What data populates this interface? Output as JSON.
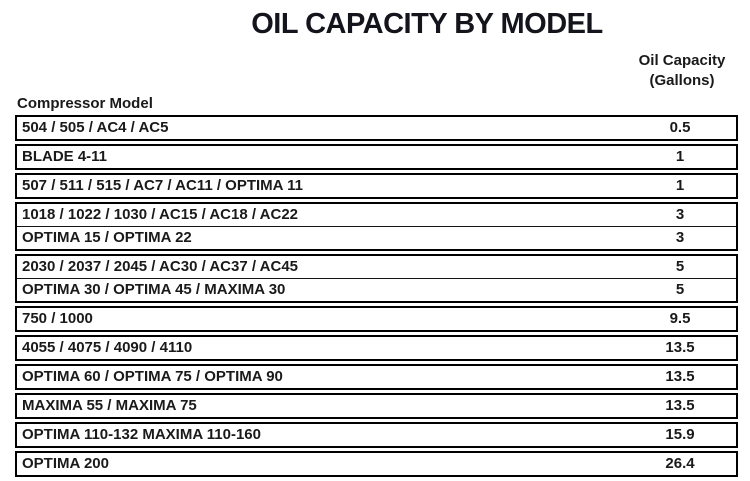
{
  "title": "OIL CAPACITY BY MODEL",
  "table": {
    "model_header": "Compressor Model",
    "capacity_header_line1": "Oil Capacity",
    "capacity_header_line2": "(Gallons)",
    "groups": [
      {
        "rows": [
          {
            "model": "504 / 505 / AC4 / AC5",
            "capacity": "0.5"
          }
        ]
      },
      {
        "rows": [
          {
            "model": "BLADE 4-11",
            "capacity": "1"
          }
        ]
      },
      {
        "rows": [
          {
            "model": "507 / 511 / 515 / AC7 / AC11 / OPTIMA 11",
            "capacity": "1"
          }
        ]
      },
      {
        "rows": [
          {
            "model": "1018 / 1022 / 1030 / AC15 / AC18 / AC22",
            "capacity": "3"
          },
          {
            "model": "OPTIMA 15 / OPTIMA 22",
            "capacity": "3"
          }
        ]
      },
      {
        "rows": [
          {
            "model": "2030 / 2037 / 2045 / AC30 / AC37 / AC45",
            "capacity": "5"
          },
          {
            "model": "OPTIMA 30 / OPTIMA 45 / MAXIMA 30",
            "capacity": "5"
          }
        ]
      },
      {
        "rows": [
          {
            "model": "750 / 1000",
            "capacity": "9.5"
          }
        ]
      },
      {
        "rows": [
          {
            "model": "4055 / 4075 / 4090 / 4110",
            "capacity": "13.5"
          }
        ]
      },
      {
        "rows": [
          {
            "model": "OPTIMA 60 / OPTIMA 75 / OPTIMA 90",
            "capacity": "13.5"
          }
        ]
      },
      {
        "rows": [
          {
            "model": "MAXIMA 55 / MAXIMA 75",
            "capacity": "13.5"
          }
        ]
      },
      {
        "rows": [
          {
            "model": "OPTIMA 110-132 MAXIMA 110-160",
            "capacity": "15.9"
          }
        ]
      },
      {
        "rows": [
          {
            "model": "OPTIMA 200",
            "capacity": "26.4"
          }
        ]
      }
    ]
  },
  "colors": {
    "background": "#ffffff",
    "text": "#1a1a1a",
    "title_text": "#14141c",
    "border": "#000000"
  }
}
